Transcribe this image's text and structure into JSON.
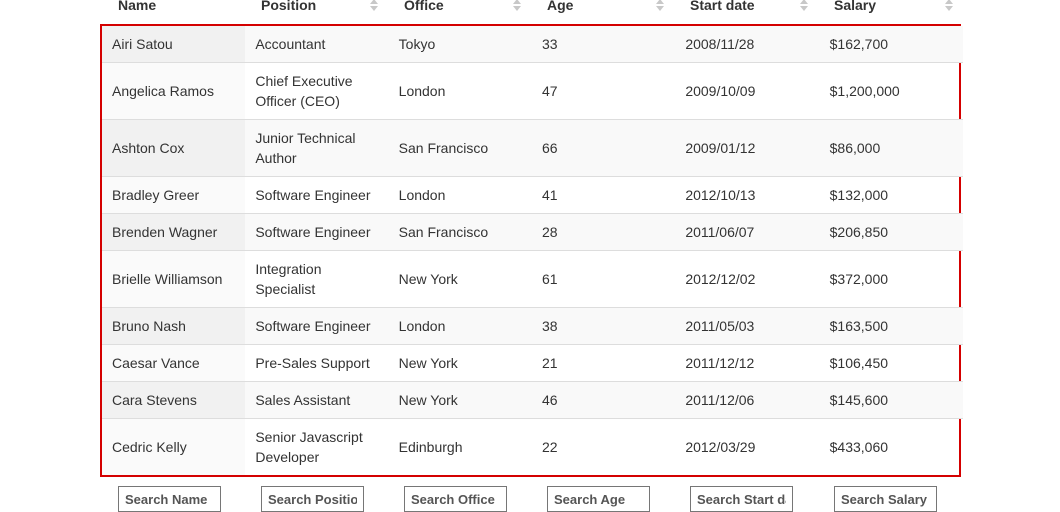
{
  "columns": [
    {
      "label": "Name",
      "sorted": true
    },
    {
      "label": "Position",
      "sorted": false
    },
    {
      "label": "Office",
      "sorted": false
    },
    {
      "label": "Age",
      "sorted": false
    },
    {
      "label": "Start date",
      "sorted": false
    },
    {
      "label": "Salary",
      "sorted": false
    }
  ],
  "rows": [
    {
      "name": "Airi Satou",
      "position": "Accountant",
      "office": "Tokyo",
      "age": "33",
      "start": "2008/11/28",
      "salary": "$162,700"
    },
    {
      "name": "Angelica Ramos",
      "position": "Chief Executive Officer (CEO)",
      "office": "London",
      "age": "47",
      "start": "2009/10/09",
      "salary": "$1,200,000"
    },
    {
      "name": "Ashton Cox",
      "position": "Junior Technical Author",
      "office": "San Francisco",
      "age": "66",
      "start": "2009/01/12",
      "salary": "$86,000"
    },
    {
      "name": "Bradley Greer",
      "position": "Software Engineer",
      "office": "London",
      "age": "41",
      "start": "2012/10/13",
      "salary": "$132,000"
    },
    {
      "name": "Brenden Wagner",
      "position": "Software Engineer",
      "office": "San Francisco",
      "age": "28",
      "start": "2011/06/07",
      "salary": "$206,850"
    },
    {
      "name": "Brielle Williamson",
      "position": "Integration Specialist",
      "office": "New York",
      "age": "61",
      "start": "2012/12/02",
      "salary": "$372,000"
    },
    {
      "name": "Bruno Nash",
      "position": "Software Engineer",
      "office": "London",
      "age": "38",
      "start": "2011/05/03",
      "salary": "$163,500"
    },
    {
      "name": "Caesar Vance",
      "position": "Pre-Sales Support",
      "office": "New York",
      "age": "21",
      "start": "2011/12/12",
      "salary": "$106,450"
    },
    {
      "name": "Cara Stevens",
      "position": "Sales Assistant",
      "office": "New York",
      "age": "46",
      "start": "2011/12/06",
      "salary": "$145,600"
    },
    {
      "name": "Cedric Kelly",
      "position": "Senior Javascript Developer",
      "office": "Edinburgh",
      "age": "22",
      "start": "2012/03/29",
      "salary": "$433,060"
    }
  ],
  "search": [
    {
      "placeholder": "Search Name"
    },
    {
      "placeholder": "Search Position"
    },
    {
      "placeholder": "Search Office"
    },
    {
      "placeholder": "Search Age"
    },
    {
      "placeholder": "Search Start date"
    },
    {
      "placeholder": "Search Salary"
    }
  ]
}
